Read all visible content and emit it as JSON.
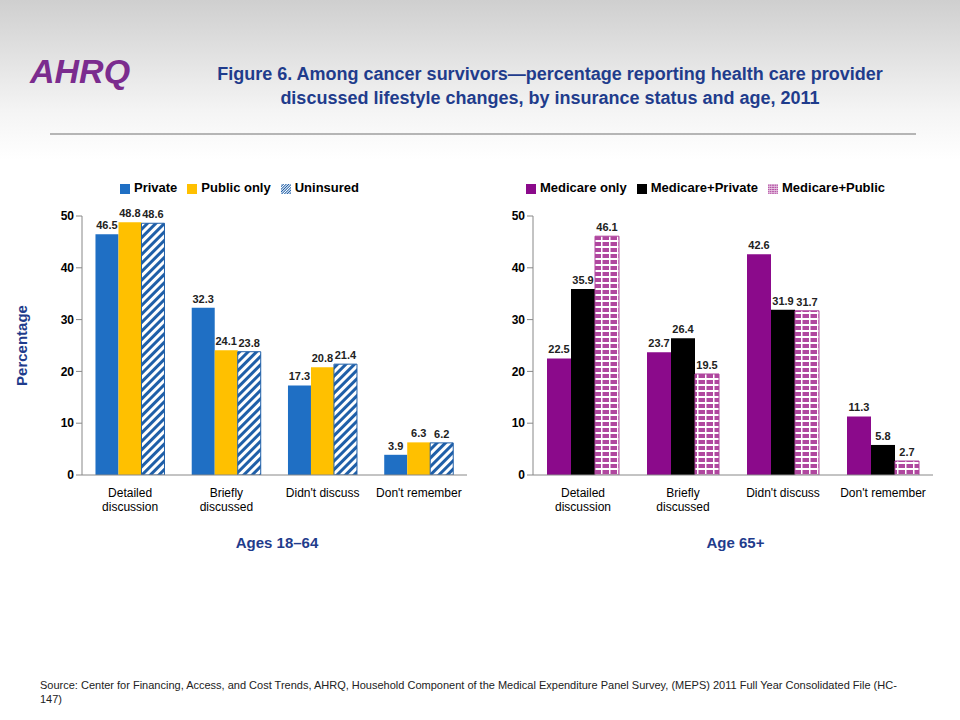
{
  "title": "Figure 6. Among cancer survivors—percentage reporting health care provider discussed lifestyle changes, by insurance status and age, 2011",
  "logo": "AHRQ",
  "source": "Source: Center for Financing, Access, and Cost Trends, AHRQ, Household Component of the Medical Expenditure Panel Survey,  (MEPS) 2011 Full Year Consolidated File (HC-147)",
  "chart_data": [
    {
      "type": "bar",
      "xlabel": "Ages 18–64",
      "ylabel": "Percentage",
      "categories": [
        "Detailed discussion",
        "Briefly discussed",
        "Didn't discuss",
        "Don't remember"
      ],
      "series": [
        {
          "name": "Private",
          "color": "#1f6fc4",
          "values": [
            46.5,
            32.3,
            17.3,
            3.9
          ]
        },
        {
          "name": "Public only",
          "color": "#ffc000",
          "values": [
            48.8,
            24.1,
            20.8,
            6.3
          ]
        },
        {
          "name": "Uninsured",
          "color": "#1f5fa8",
          "values": [
            48.6,
            23.8,
            21.4,
            6.2
          ]
        }
      ],
      "ylim": [
        0,
        50
      ],
      "yticks": [
        0,
        10,
        20,
        30,
        40,
        50
      ],
      "grid": false,
      "legend": "top",
      "data_labels": true
    },
    {
      "type": "bar",
      "xlabel": "Age 65+",
      "categories": [
        "Detailed discussion",
        "Briefly discussed",
        "Didn't discuss",
        "Don't remember"
      ],
      "series": [
        {
          "name": "Medicare only",
          "color": "#8b0a8b",
          "values": [
            22.5,
            23.7,
            42.6,
            11.3
          ]
        },
        {
          "name": "Medicare+Private",
          "color": "#000000",
          "values": [
            35.9,
            26.4,
            31.9,
            5.8
          ]
        },
        {
          "name": "Medicare+Public",
          "color": "#b0479f",
          "values": [
            46.1,
            19.5,
            31.7,
            2.7
          ]
        }
      ],
      "ylim": [
        0,
        50
      ],
      "yticks": [
        0,
        10,
        20,
        30,
        40,
        50
      ],
      "grid": false,
      "legend": "top",
      "data_labels": true
    }
  ]
}
